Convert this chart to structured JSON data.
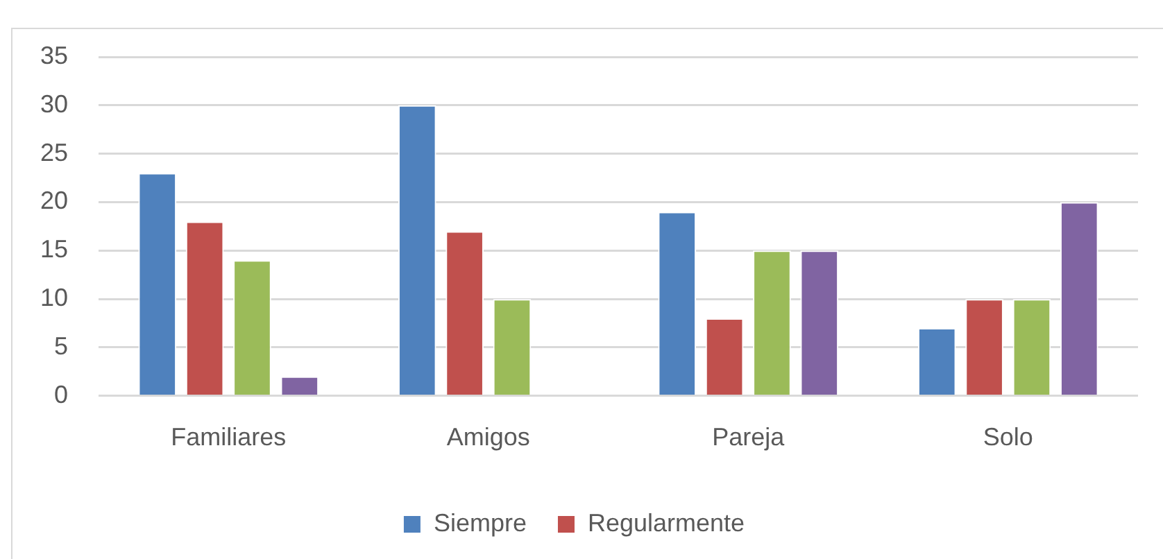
{
  "chart_data": {
    "type": "bar",
    "categories": [
      "Familiares",
      "Amigos",
      "Pareja",
      "Solo"
    ],
    "series": [
      {
        "name": "Siempre",
        "color": "#4f81bd",
        "values": [
          23,
          30,
          19,
          7
        ]
      },
      {
        "name": "Regularmente",
        "color": "#c0504d",
        "values": [
          18,
          17,
          8,
          10
        ]
      },
      {
        "color": "#9bbb59",
        "values": [
          14,
          10,
          15,
          10
        ]
      },
      {
        "color": "#8064a2",
        "values": [
          2,
          null,
          15,
          20
        ]
      }
    ],
    "ylim": [
      0,
      35
    ],
    "yticks": [
      0,
      5,
      10,
      15,
      20,
      25,
      30,
      35
    ],
    "grid": "y",
    "legend": "bottom"
  }
}
